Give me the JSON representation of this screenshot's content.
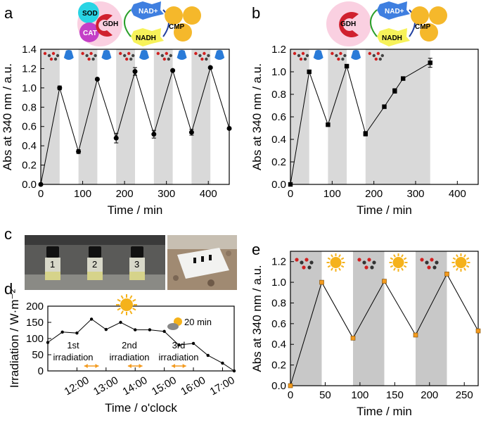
{
  "panel_labels": {
    "a": "a",
    "b": "b",
    "c": "c",
    "d": "d",
    "e": "e"
  },
  "chart_data": [
    {
      "id": "a",
      "type": "line",
      "xlabel": "Time / min",
      "ylabel": "Abs at 340 nm / a.u.",
      "xlim": [
        0,
        450
      ],
      "ylim": [
        0,
        1.4
      ],
      "xticks": [
        0,
        100,
        200,
        300,
        400
      ],
      "yticks": [
        "0.0",
        "0.2",
        "0.4",
        "0.6",
        "0.8",
        "1.0",
        "1.2",
        "1.4"
      ],
      "shaded": [
        [
          0,
          45
        ],
        [
          90,
          135
        ],
        [
          180,
          225
        ],
        [
          270,
          315
        ],
        [
          360,
          405
        ]
      ],
      "x": [
        0,
        45,
        90,
        135,
        180,
        225,
        270,
        315,
        360,
        405,
        450
      ],
      "y": [
        0,
        1.0,
        0.34,
        1.09,
        0.48,
        1.17,
        0.52,
        1.18,
        0.54,
        1.21,
        0.58
      ],
      "err": [
        0,
        0.02,
        0.02,
        0.01,
        0.05,
        0.04,
        0.04,
        0.01,
        0.03,
        0.01,
        0.01
      ],
      "marker_color": "#000000",
      "diagram": {
        "enzymes": [
          "SOD",
          "CAT",
          "GDH",
          "CMP"
        ],
        "cofactors": [
          "NAD+",
          "NADH"
        ]
      }
    },
    {
      "id": "b",
      "type": "line",
      "xlabel": "Time / min",
      "ylabel": "Abs at 340 nm / a.u.",
      "xlim": [
        0,
        450
      ],
      "ylim": [
        0,
        1.2
      ],
      "xticks": [
        0,
        100,
        200,
        300,
        400
      ],
      "yticks": [
        "0.0",
        "0.2",
        "0.4",
        "0.6",
        "0.8",
        "1.0",
        "1.2"
      ],
      "shaded": [
        [
          0,
          45
        ],
        [
          90,
          135
        ],
        [
          180,
          335
        ]
      ],
      "x": [
        0,
        45,
        90,
        135,
        180,
        225,
        250,
        270,
        335
      ],
      "y": [
        0,
        1.0,
        0.53,
        1.05,
        0.45,
        0.69,
        0.83,
        0.94,
        1.08
      ],
      "err": [
        0,
        0.01,
        0.01,
        0.01,
        0.02,
        0.01,
        0.02,
        0.01,
        0.04
      ],
      "marker_color": "#000000",
      "diagram": {
        "enzymes": [
          "GDH",
          "CMP"
        ],
        "cofactors": [
          "NAD+",
          "NADH"
        ]
      }
    },
    {
      "id": "d",
      "type": "line",
      "xlabel": "Time / o'clock",
      "ylabel": "Irradiation / W·m⁻²",
      "xlim": [
        11,
        17.4
      ],
      "ylim": [
        0,
        200
      ],
      "xticks": [
        "12:00",
        "13:00",
        "14:00",
        "15:00",
        "16:00",
        "17:00"
      ],
      "yticks": [
        "0",
        "50",
        "100",
        "150",
        "200"
      ],
      "x": [
        11,
        11.5,
        12,
        12.5,
        13,
        13.5,
        14,
        14.5,
        15,
        15.5,
        16,
        16.5,
        17,
        17.4
      ],
      "y": [
        88,
        120,
        117,
        160,
        128,
        150,
        127,
        127,
        122,
        80,
        85,
        48,
        24,
        0
      ],
      "annotations": [
        "1st irradiation",
        "2nd irradiation",
        "3rd irradiation",
        "20 min"
      ],
      "marker_color": "#000000"
    },
    {
      "id": "e",
      "type": "line",
      "xlabel": "Time / min",
      "ylabel": "Abs at 340 nm / a.u.",
      "xlim": [
        0,
        270
      ],
      "ylim": [
        0,
        1.3
      ],
      "xticks": [
        0,
        50,
        100,
        150,
        200,
        250
      ],
      "yticks": [
        "0.0",
        "0.2",
        "0.4",
        "0.6",
        "0.8",
        "1.0",
        "1.2"
      ],
      "shaded": [
        [
          0,
          45
        ],
        [
          90,
          135
        ],
        [
          180,
          225
        ]
      ],
      "x": [
        0,
        45,
        90,
        135,
        180,
        225,
        270
      ],
      "y": [
        0,
        1.0,
        0.46,
        1.01,
        0.49,
        1.08,
        0.53
      ],
      "err": [
        0,
        0.01,
        0.01,
        0.01,
        0.01,
        0.01,
        0.01
      ],
      "marker_color": "#f39a1e"
    }
  ],
  "photo_labels": [
    "1",
    "2",
    "3"
  ],
  "colors": {
    "shade": "#d9d9d9",
    "shade_e": "#c8c8c8",
    "sun": "#f5b21b",
    "accent_orange": "#f39a1e",
    "nadh": "#f7f25a",
    "nad": "#3f7fe0",
    "cmp": "#f5b82b"
  }
}
